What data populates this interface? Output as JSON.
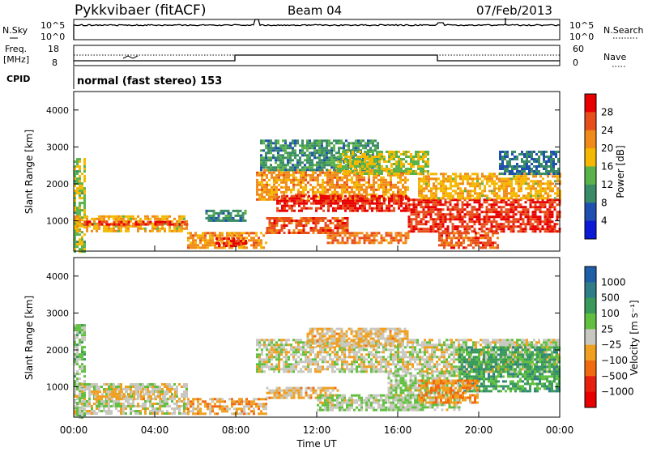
{
  "header": {
    "station": "Pykkvibaer (fitACF)",
    "beam": "Beam 04",
    "date": "07/Feb/2013",
    "cpid_program": "normal (fast stereo) 153",
    "cpid_label": "CPID"
  },
  "noise_panel": {
    "left_label": "N.Sky",
    "right_label": "N.Search",
    "left_ticks": [
      "10^5",
      "10^0"
    ],
    "right_ticks": [
      "10^5",
      "10^0"
    ]
  },
  "freq_panel": {
    "left_label_1": "Freq.",
    "left_label_2": "[MHz]",
    "right_label": "Nave",
    "left_ticks": [
      "18",
      "8"
    ],
    "right_ticks": [
      "60",
      "0"
    ]
  },
  "x_axis": {
    "title": "Time UT",
    "ticks": [
      "00:00",
      "04:00",
      "08:00",
      "12:00",
      "16:00",
      "20:00",
      "00:00"
    ],
    "range_hours": [
      0,
      24
    ]
  },
  "y_axis": {
    "title": "Slant Range [km]",
    "ticks": [
      "1000",
      "2000",
      "3000",
      "4000"
    ],
    "range_km": [
      180,
      4500
    ]
  },
  "power_colorbar": {
    "label": "Power [dB]",
    "ticks": [
      "4",
      "8",
      "12",
      "16",
      "20",
      "24",
      "28"
    ],
    "colors": [
      "#0a1ad6",
      "#1f4fb0",
      "#3a8c66",
      "#5ab34a",
      "#f5b800",
      "#f08a18",
      "#e84e1c",
      "#e80000"
    ]
  },
  "velocity_colorbar": {
    "label": "Velocity [m s⁻¹]",
    "ticks": [
      "1000",
      "500",
      "100",
      "25",
      "−25",
      "−100",
      "−500",
      "−1000"
    ],
    "colors": [
      "#1f5fa8",
      "#2f7d86",
      "#3a9a5c",
      "#62c040",
      "#c8c8c0",
      "#f0a020",
      "#f06a10",
      "#e82010",
      "#e80000"
    ]
  },
  "chart_data": [
    {
      "type": "heatmap",
      "title": "Power",
      "ylabel": "Slant Range [km]",
      "xlabel": "",
      "clim": [
        0,
        30
      ],
      "regions": [
        {
          "t": [
            0.0,
            0.6
          ],
          "r": [
            200,
            2700
          ],
          "value": 14
        },
        {
          "t": [
            0.0,
            5.6
          ],
          "r": [
            750,
            1150
          ],
          "value": 18
        },
        {
          "t": [
            0.5,
            5.6
          ],
          "r": [
            900,
            1000
          ],
          "value": 26
        },
        {
          "t": [
            5.6,
            9.5
          ],
          "r": [
            250,
            700
          ],
          "value": 20
        },
        {
          "t": [
            7.0,
            8.5
          ],
          "r": [
            350,
            550
          ],
          "value": 27
        },
        {
          "t": [
            6.5,
            8.5
          ],
          "r": [
            1000,
            1300
          ],
          "value": 9
        },
        {
          "t": [
            9.0,
            16.5
          ],
          "r": [
            1600,
            2400
          ],
          "value": 20
        },
        {
          "t": [
            10.0,
            16.5
          ],
          "r": [
            1300,
            1700
          ],
          "value": 27
        },
        {
          "t": [
            9.2,
            15.0
          ],
          "r": [
            2400,
            3200
          ],
          "value": 10
        },
        {
          "t": [
            9.5,
            13.5
          ],
          "r": [
            700,
            1100
          ],
          "value": 24
        },
        {
          "t": [
            12.5,
            16.5
          ],
          "r": [
            400,
            700
          ],
          "value": 22
        },
        {
          "t": [
            13.0,
            17.5
          ],
          "r": [
            2300,
            2900
          ],
          "value": 15
        },
        {
          "t": [
            16.5,
            24.0
          ],
          "r": [
            700,
            1600
          ],
          "value": 26
        },
        {
          "t": [
            17.0,
            24.0
          ],
          "r": [
            1600,
            2300
          ],
          "value": 18
        },
        {
          "t": [
            18.0,
            21.0
          ],
          "r": [
            300,
            700
          ],
          "value": 24
        },
        {
          "t": [
            21.0,
            24.0
          ],
          "r": [
            2300,
            2900
          ],
          "value": 8
        }
      ]
    },
    {
      "type": "heatmap",
      "title": "Velocity",
      "ylabel": "Slant Range [km]",
      "xlabel": "Time UT",
      "clim": [
        -1000,
        1000
      ],
      "regions": [
        {
          "t": [
            0.0,
            0.6
          ],
          "r": [
            200,
            2700
          ],
          "value": 150
        },
        {
          "t": [
            0.0,
            5.6
          ],
          "r": [
            300,
            1100
          ],
          "value": -5
        },
        {
          "t": [
            1.0,
            5.0
          ],
          "r": [
            700,
            900
          ],
          "value": -120
        },
        {
          "t": [
            5.6,
            9.5
          ],
          "r": [
            250,
            700
          ],
          "value": -200
        },
        {
          "t": [
            9.0,
            24.0
          ],
          "r": [
            1400,
            2300
          ],
          "value": 0
        },
        {
          "t": [
            9.5,
            13.0
          ],
          "r": [
            700,
            1000
          ],
          "value": -150
        },
        {
          "t": [
            11.5,
            16.5
          ],
          "r": [
            2100,
            2600
          ],
          "value": -120
        },
        {
          "t": [
            12.0,
            17.0
          ],
          "r": [
            400,
            800
          ],
          "value": 80
        },
        {
          "t": [
            15.5,
            19.0
          ],
          "r": [
            400,
            1400
          ],
          "value": 90
        },
        {
          "t": [
            19.0,
            24.0
          ],
          "r": [
            900,
            2100
          ],
          "value": 400
        },
        {
          "t": [
            17.0,
            20.0
          ],
          "r": [
            600,
            1200
          ],
          "value": -300
        }
      ]
    }
  ]
}
